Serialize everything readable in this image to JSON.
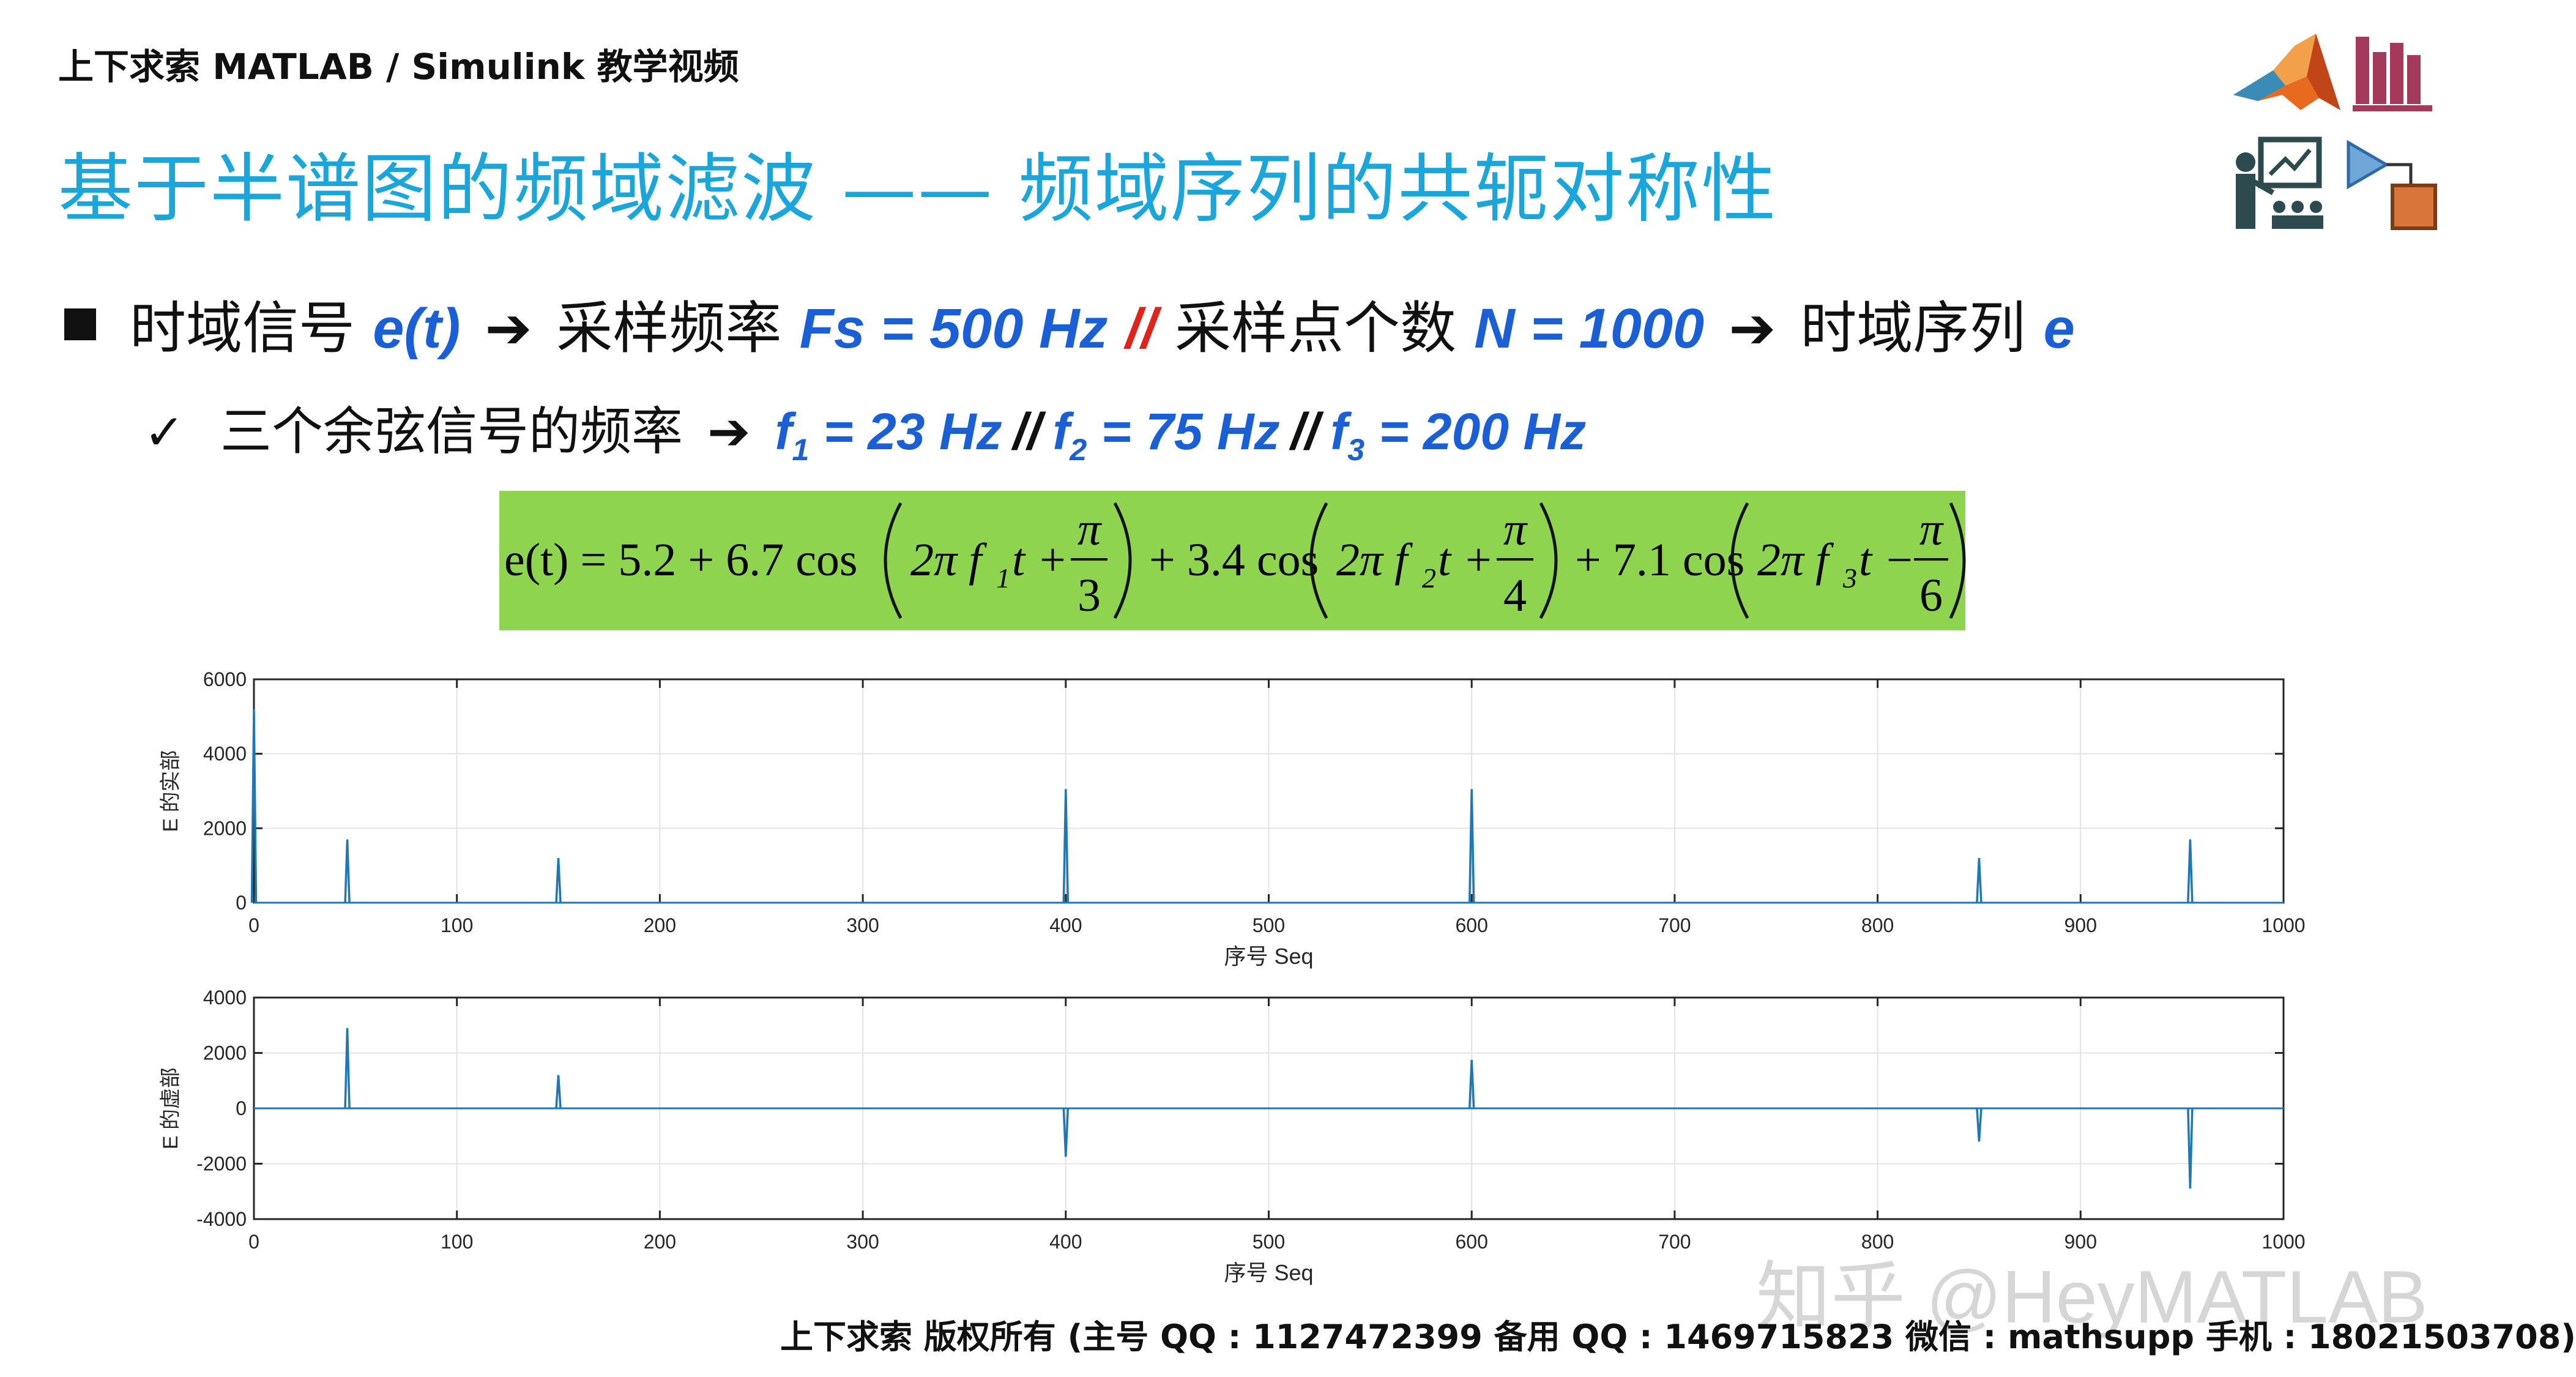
{
  "header": {
    "top_label": "上下求索 MATLAB / Simulink 教学视频",
    "title": "基于半谱图的频域滤波 —— 频域序列的共轭对称性"
  },
  "bullet1": {
    "part1": "时域信号 ",
    "sig": "e(t)",
    "arrow1": "➔",
    "part2": "采样频率 ",
    "fs": "Fs = 500 Hz",
    "sep": "//",
    "part3": "采样点个数 ",
    "n": "N = 1000",
    "arrow2": "➔",
    "part4": "时域序列 ",
    "e": "e"
  },
  "bullet2": {
    "check": "✓",
    "text": "三个余弦信号的频率",
    "arrow": "➔",
    "f1_sym": "f",
    "f1_sub": "1",
    "f1_val": " = 23 Hz",
    "sep1": "//",
    "f2_sym": "f",
    "f2_sub": "2",
    "f2_val": " = 75 Hz",
    "sep2": "//",
    "f3_sym": "f",
    "f3_sub": "3",
    "f3_val": " = 200 Hz"
  },
  "formula": {
    "lhs": "e(t) = 5.2 + 6.7 cos",
    "t1": "2π f",
    "t1sub": "1",
    "t1rest": "t +",
    "frac1_num": "π",
    "frac1_den": "3",
    "mid1": "+ 3.4 cos",
    "t2": "2π f",
    "t2sub": "2",
    "t2rest": "t +",
    "frac2_num": "π",
    "frac2_den": "4",
    "mid2": "+ 7.1 cos",
    "t3": "2π f",
    "t3sub": "3",
    "t3rest": "t −",
    "frac3_num": "π",
    "frac3_den": "6"
  },
  "chart_data": [
    {
      "type": "line",
      "xlabel": "序号 Seq",
      "ylabel": "E 的实部",
      "xlim": [
        0,
        1000
      ],
      "ylim": [
        0,
        6000
      ],
      "xticks": [
        0,
        100,
        200,
        300,
        400,
        500,
        600,
        700,
        800,
        900,
        1000
      ],
      "yticks": [
        0,
        2000,
        4000,
        6000
      ],
      "grid": true,
      "color": "#1f77b4",
      "baseline": 0,
      "points": [
        {
          "x": 0,
          "y": 5200
        },
        {
          "x": 46,
          "y": 1700
        },
        {
          "x": 150,
          "y": 1200
        },
        {
          "x": 400,
          "y": 3050
        },
        {
          "x": 600,
          "y": 3050
        },
        {
          "x": 850,
          "y": 1200
        },
        {
          "x": 954,
          "y": 1700
        }
      ]
    },
    {
      "type": "line",
      "xlabel": "序号 Seq",
      "ylabel": "E 的虚部",
      "xlim": [
        0,
        1000
      ],
      "ylim": [
        -4000,
        4000
      ],
      "xticks": [
        0,
        100,
        200,
        300,
        400,
        500,
        600,
        700,
        800,
        900,
        1000
      ],
      "yticks": [
        -4000,
        -2000,
        0,
        2000,
        4000
      ],
      "grid": true,
      "color": "#1f77b4",
      "baseline": 0,
      "points": [
        {
          "x": 46,
          "y": 2900
        },
        {
          "x": 150,
          "y": 1200
        },
        {
          "x": 400,
          "y": -1750
        },
        {
          "x": 600,
          "y": 1750
        },
        {
          "x": 850,
          "y": -1200
        },
        {
          "x": 954,
          "y": -2900
        }
      ]
    }
  ],
  "footer": "上下求索  版权所有 (主号 QQ : 1127472399   备用 QQ : 1469715823   微信 : mathsupp   手机 : 18021503708)",
  "watermark": "知乎 @HeyMATLAB",
  "icons": [
    "matlab-logo-icon",
    "library-books-icon",
    "teacher-presentation-icon",
    "simulink-block-icon"
  ]
}
